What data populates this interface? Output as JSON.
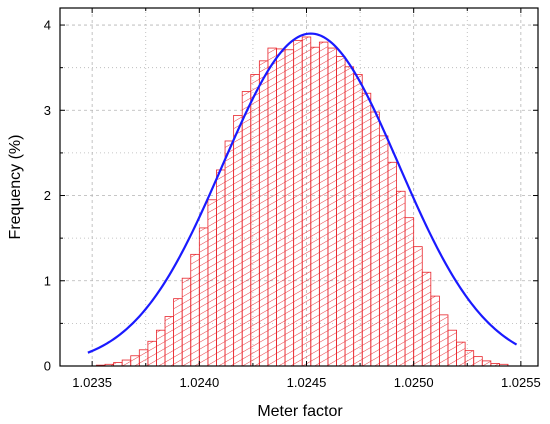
{
  "chart_data": {
    "type": "bar",
    "title": "",
    "xlabel": "Meter factor",
    "ylabel": "Frequency (%)",
    "xlim": [
      1.02335,
      1.02558
    ],
    "ylim": [
      0,
      4.2
    ],
    "xticks": [
      1.0235,
      1.024,
      1.0245,
      1.025,
      1.0255
    ],
    "xtick_labels": [
      "1.0235",
      "1.0240",
      "1.0245",
      "1.0250",
      "1.0255"
    ],
    "yticks": [
      0,
      1,
      2,
      3,
      4
    ],
    "ytick_labels": [
      "0",
      "1",
      "2",
      "3",
      "4"
    ],
    "grid": true,
    "bin_width": 4e-05,
    "bins": [
      {
        "x": 1.02354,
        "value": 0.01
      },
      {
        "x": 1.02358,
        "value": 0.02
      },
      {
        "x": 1.02362,
        "value": 0.04
      },
      {
        "x": 1.02366,
        "value": 0.07
      },
      {
        "x": 1.0237,
        "value": 0.12
      },
      {
        "x": 1.02374,
        "value": 0.19
      },
      {
        "x": 1.02378,
        "value": 0.29
      },
      {
        "x": 1.02382,
        "value": 0.42
      },
      {
        "x": 1.02386,
        "value": 0.58
      },
      {
        "x": 1.0239,
        "value": 0.79
      },
      {
        "x": 1.02394,
        "value": 1.03
      },
      {
        "x": 1.02398,
        "value": 1.31
      },
      {
        "x": 1.02402,
        "value": 1.62
      },
      {
        "x": 1.02406,
        "value": 1.95
      },
      {
        "x": 1.0241,
        "value": 2.3
      },
      {
        "x": 1.02414,
        "value": 2.64
      },
      {
        "x": 1.02418,
        "value": 2.94
      },
      {
        "x": 1.02422,
        "value": 3.22
      },
      {
        "x": 1.02426,
        "value": 3.42
      },
      {
        "x": 1.0243,
        "value": 3.58
      },
      {
        "x": 1.02434,
        "value": 3.73
      },
      {
        "x": 1.02438,
        "value": 3.72
      },
      {
        "x": 1.02442,
        "value": 3.71
      },
      {
        "x": 1.02446,
        "value": 3.82
      },
      {
        "x": 1.0245,
        "value": 3.86
      },
      {
        "x": 1.02454,
        "value": 3.74
      },
      {
        "x": 1.02458,
        "value": 3.8
      },
      {
        "x": 1.02462,
        "value": 3.73
      },
      {
        "x": 1.02466,
        "value": 3.63
      },
      {
        "x": 1.0247,
        "value": 3.51
      },
      {
        "x": 1.02474,
        "value": 3.42
      },
      {
        "x": 1.02478,
        "value": 3.2
      },
      {
        "x": 1.02482,
        "value": 2.98
      },
      {
        "x": 1.02486,
        "value": 2.7
      },
      {
        "x": 1.0249,
        "value": 2.39
      },
      {
        "x": 1.02494,
        "value": 2.05
      },
      {
        "x": 1.02498,
        "value": 1.74
      },
      {
        "x": 1.02502,
        "value": 1.4
      },
      {
        "x": 1.02506,
        "value": 1.1
      },
      {
        "x": 1.0251,
        "value": 0.82
      },
      {
        "x": 1.02514,
        "value": 0.6
      },
      {
        "x": 1.02518,
        "value": 0.42
      },
      {
        "x": 1.02522,
        "value": 0.28
      },
      {
        "x": 1.02526,
        "value": 0.18
      },
      {
        "x": 1.0253,
        "value": 0.11
      },
      {
        "x": 1.02534,
        "value": 0.06
      },
      {
        "x": 1.02538,
        "value": 0.03
      },
      {
        "x": 1.02542,
        "value": 0.02
      }
    ],
    "fit_curve": {
      "type": "normal",
      "mean": 1.02452,
      "peak": 3.9,
      "sigma": 0.00041,
      "x_range": [
        1.02348,
        1.02548
      ]
    },
    "colors": {
      "bar_stroke": "#e8232a",
      "bar_fill": "#fff4f4",
      "hatch": "#e8232a",
      "curve": "#1a1aff",
      "grid": "#b4b4b4",
      "axis": "#000000"
    }
  }
}
